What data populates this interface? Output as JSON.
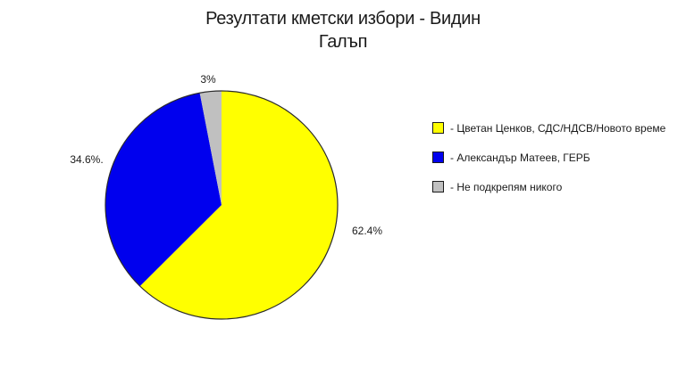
{
  "chart_data": {
    "type": "pie",
    "title": "Резултати кметски избори - Видин",
    "subtitle": "Галъп",
    "direction": "clockwise",
    "start_angle_deg": 0,
    "legend_position": "right",
    "outline_color": "#2a2a2a",
    "background_color": "#ffffff",
    "slices": [
      {
        "name": "Цветан Ценков, СДС/НДСВ/Новото време",
        "value": 62.4,
        "label": "62.4%",
        "legend": "- Цветан Ценков, СДС/НДСВ/Новото време",
        "color": "#ffff00"
      },
      {
        "name": "Александър Матеев, ГЕРБ",
        "value": 34.6,
        "label": "34.6%.",
        "legend": "- Александър Матеев, ГЕРБ",
        "color": "#0000ee"
      },
      {
        "name": "Не подкрепям никого",
        "value": 3,
        "label": "3%",
        "legend": "- Не подкрепям никого",
        "color": "#c0c0c0"
      }
    ]
  }
}
